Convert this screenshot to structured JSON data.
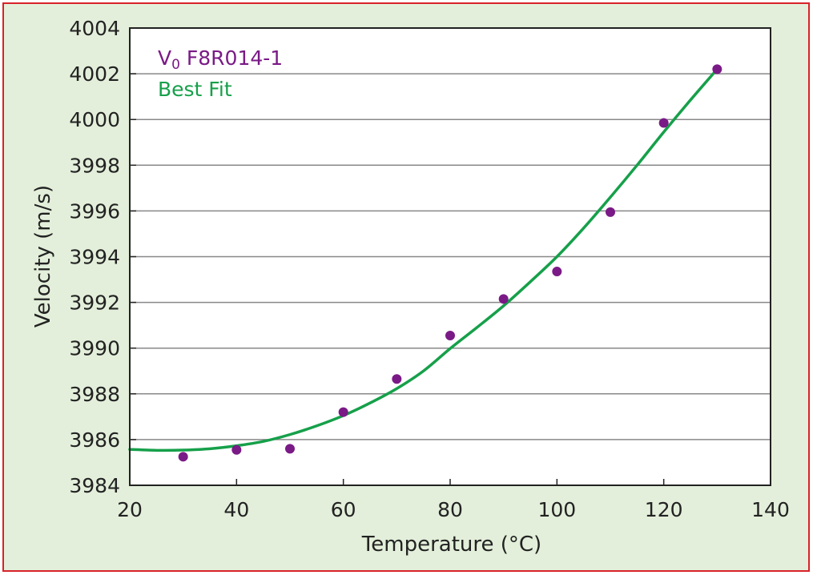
{
  "chart_data": {
    "type": "scatter",
    "xlabel": "Temperature (°C)",
    "ylabel": "Velocity (m/s)",
    "xlim": [
      20,
      140
    ],
    "ylim": [
      3984,
      4004
    ],
    "x_ticks": [
      20,
      40,
      60,
      80,
      100,
      120,
      140
    ],
    "y_ticks": [
      3984,
      3986,
      3988,
      3990,
      3992,
      3994,
      3996,
      3998,
      4000,
      4002,
      4004
    ],
    "grid": "horizontal",
    "legend_position": "top-left",
    "legend": {
      "measured_main": "V",
      "measured_sub": "0",
      "measured_rest": " F8R014-1",
      "fit": "Best Fit"
    },
    "series": [
      {
        "kind": "points",
        "color": "#7a1a86",
        "x": [
          30,
          40,
          50,
          60,
          70,
          80,
          90,
          100,
          110,
          120,
          130
        ],
        "y": [
          3985.25,
          3985.55,
          3985.6,
          3987.2,
          3988.65,
          3990.55,
          3992.15,
          3993.35,
          3995.95,
          3999.85,
          4002.2
        ]
      },
      {
        "kind": "line",
        "color": "#16a04a",
        "x": [
          20,
          25,
          30,
          35,
          40,
          45,
          50,
          55,
          60,
          65,
          70,
          75,
          80,
          85,
          90,
          95,
          100,
          105,
          110,
          115,
          120,
          125,
          130
        ],
        "y": [
          3985.57,
          3985.53,
          3985.54,
          3985.6,
          3985.73,
          3985.92,
          3986.22,
          3986.6,
          3987.05,
          3987.6,
          3988.23,
          3989.0,
          3989.98,
          3990.9,
          3991.85,
          3992.9,
          3994.0,
          3995.25,
          3996.6,
          3998.0,
          3999.45,
          4000.85,
          4002.2
        ]
      }
    ],
    "colors": {
      "panel_background": "#e3efda",
      "border": "#d8232a",
      "grid": "#888888"
    }
  }
}
